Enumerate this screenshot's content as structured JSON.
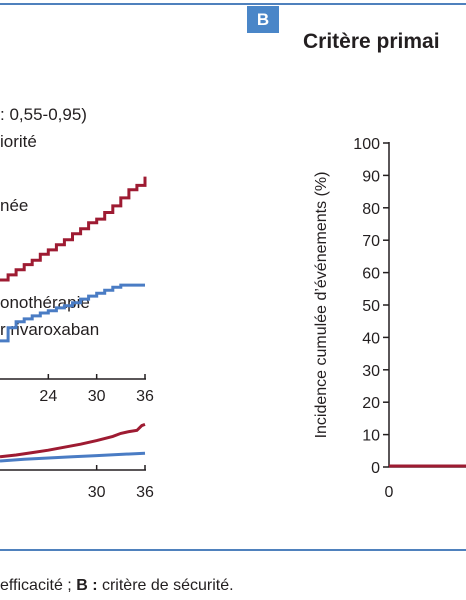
{
  "panel_badge": "B",
  "panel_b_title": "Critère primai",
  "caption": {
    "part1": "efficacité ; ",
    "label_b": "B :",
    "part2": " critère de sécurité."
  },
  "colors": {
    "red_series": "#9e1b32",
    "blue_series": "#4a7cc4",
    "rule": "#4f81bd",
    "badge": "#4a86c8",
    "axis": "#231f20"
  },
  "chart_data": [
    {
      "type": "line",
      "panel": "A",
      "annotations": [
        ": 0,55-0,95)",
        "iorité",
        "née",
        "onothérapie",
        "r rivaroxaban"
      ],
      "x_ticks": [
        "24",
        "30",
        "36"
      ],
      "x_range": [
        18,
        36
      ],
      "y_range": [
        0,
        30
      ],
      "series": [
        {
          "color": "#9e1b32",
          "x": [
            18,
            19,
            20,
            21,
            22,
            23,
            24,
            25,
            26,
            27,
            28,
            29,
            30,
            31,
            32,
            33,
            34,
            35,
            36
          ],
          "y": [
            13.5,
            14.2,
            14.9,
            15.6,
            16.2,
            17.0,
            17.6,
            18.3,
            19.0,
            19.8,
            20.5,
            21.3,
            21.8,
            22.7,
            23.6,
            24.7,
            25.8,
            26.4,
            27.6
          ]
        },
        {
          "color": "#4a7cc4",
          "x": [
            18,
            19,
            20,
            21,
            22,
            23,
            24,
            25,
            26,
            27,
            28,
            29,
            30,
            31,
            32,
            33,
            34,
            35,
            36
          ],
          "y": [
            5.2,
            7.0,
            7.8,
            8.2,
            8.6,
            9.0,
            9.3,
            9.7,
            10.0,
            10.4,
            10.9,
            11.3,
            11.7,
            12.1,
            12.5,
            12.8,
            12.8,
            12.8,
            12.8
          ]
        }
      ]
    },
    {
      "type": "line",
      "panel": "A-inset",
      "x_ticks": [
        "30",
        "36"
      ],
      "x_range": [
        18,
        36
      ],
      "y_range": [
        0,
        10
      ],
      "series": [
        {
          "color": "#9e1b32",
          "x": [
            18,
            20,
            22,
            24,
            26,
            28,
            30,
            32,
            33,
            34,
            35,
            35.6,
            36
          ],
          "y": [
            2.2,
            2.5,
            2.9,
            3.3,
            3.8,
            4.3,
            4.9,
            5.6,
            6.1,
            6.4,
            6.6,
            7.4,
            7.6
          ]
        },
        {
          "color": "#4a7cc4",
          "x": [
            18,
            21,
            24,
            27,
            30,
            33,
            36
          ],
          "y": [
            1.5,
            1.8,
            2.0,
            2.2,
            2.4,
            2.6,
            2.8
          ]
        }
      ]
    },
    {
      "type": "line",
      "panel": "B",
      "ylabel": "Incidence cumulée d’événements (%)",
      "y_ticks": [
        "0",
        "10",
        "20",
        "30",
        "40",
        "50",
        "60",
        "70",
        "80",
        "90",
        "100"
      ],
      "x_ticks": [
        "0"
      ],
      "ylim": [
        0,
        100
      ],
      "series": [
        {
          "color": "#9e1b32",
          "x": [
            0,
            2.8
          ],
          "y": [
            0,
            0
          ]
        }
      ]
    }
  ]
}
